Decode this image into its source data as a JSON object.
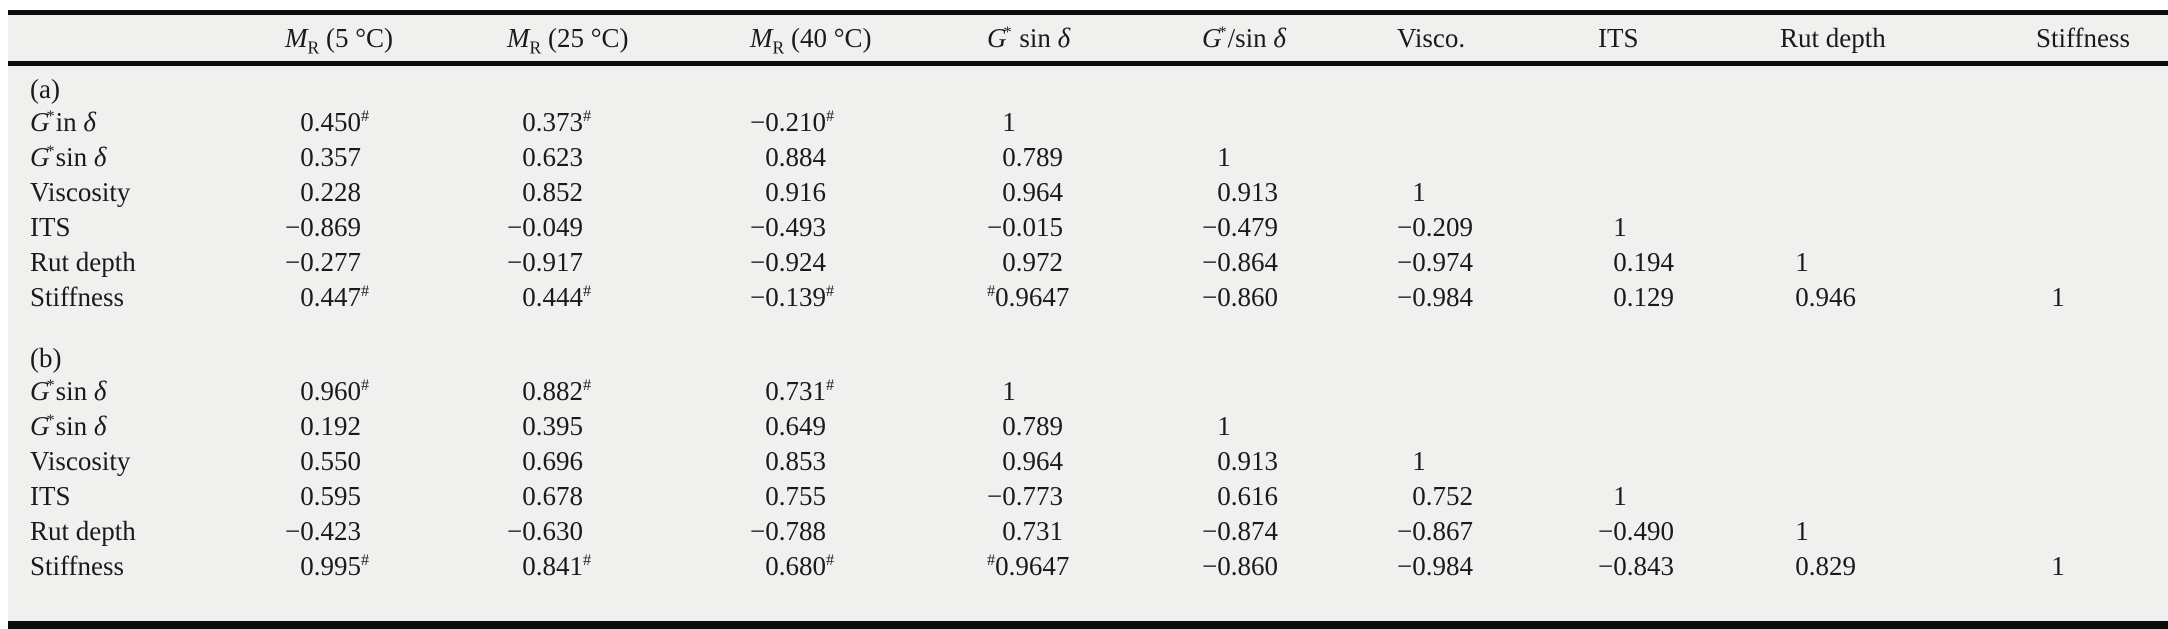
{
  "meta": {
    "background": "#ffffff",
    "table_background": "#f0f0ef",
    "rule_color": "#0d0d0d",
    "text_color": "#1a1a1a"
  },
  "chart_data": {
    "type": "table",
    "title": "",
    "columns": [
      "",
      "MR (5 °C)",
      "MR (25 °C)",
      "MR (40 °C)",
      "G* sin δ",
      "G*/sin δ",
      "Visco.",
      "ITS",
      "Rut depth",
      "Stiffness"
    ],
    "sections": [
      {
        "label": "(a)",
        "rows": [
          [
            "G*in δ",
            "0.450#",
            "0.373#",
            "−0.210#",
            "1",
            "",
            "",
            "",
            "",
            ""
          ],
          [
            "G*sin δ",
            "0.357",
            "0.623",
            "0.884",
            "0.789",
            "1",
            "",
            "",
            "",
            ""
          ],
          [
            "Viscosity",
            "0.228",
            "0.852",
            "0.916",
            "0.964",
            "0.913",
            "1",
            "",
            "",
            ""
          ],
          [
            "ITS",
            "−0.869",
            "−0.049",
            "−0.493",
            "−0.015",
            "−0.479",
            "−0.209",
            "1",
            "",
            ""
          ],
          [
            "Rut depth",
            "−0.277",
            "−0.917",
            "−0.924",
            "0.972",
            "−0.864",
            "−0.974",
            "0.194",
            "1",
            ""
          ],
          [
            "Stiffness",
            "0.447#",
            "0.444#",
            "−0.139#",
            "#0.9647",
            "−0.860",
            "−0.984",
            "0.129",
            "0.946",
            "1"
          ]
        ]
      },
      {
        "label": "(b)",
        "rows": [
          [
            "G*sin δ",
            "0.960#",
            "0.882#",
            "0.731#",
            "1",
            "",
            "",
            "",
            "",
            ""
          ],
          [
            "G*sin δ",
            "0.192",
            "0.395",
            "0.649",
            "0.789",
            "1",
            "",
            "",
            "",
            ""
          ],
          [
            "Viscosity",
            "0.550",
            "0.696",
            "0.853",
            "0.964",
            "0.913",
            "1",
            "",
            "",
            ""
          ],
          [
            "ITS",
            "0.595",
            "0.678",
            "0.755",
            "−0.773",
            "0.616",
            "0.752",
            "1",
            "",
            ""
          ],
          [
            "Rut depth",
            "−0.423",
            "−0.630",
            "−0.788",
            "0.731",
            "−0.874",
            "−0.867",
            "−0.490",
            "1",
            ""
          ],
          [
            "Stiffness",
            "0.995#",
            "0.841#",
            "0.680#",
            "#0.9647",
            "−0.860",
            "−0.984",
            "−0.843",
            "0.829",
            "1"
          ]
        ]
      }
    ]
  },
  "table": {
    "header": {
      "columns": [
        {
          "name": "row-label",
          "parts": []
        },
        {
          "name": "mr-5c",
          "parts": [
            {
              "t": "i",
              "v": "M"
            },
            {
              "t": "sub",
              "v": "R"
            },
            {
              "t": "n",
              "v": " (5 °C)"
            }
          ]
        },
        {
          "name": "mr-25c",
          "parts": [
            {
              "t": "i",
              "v": "M"
            },
            {
              "t": "sub",
              "v": "R"
            },
            {
              "t": "n",
              "v": " (25 °C)"
            }
          ]
        },
        {
          "name": "mr-40c",
          "parts": [
            {
              "t": "i",
              "v": "M"
            },
            {
              "t": "sub",
              "v": "R"
            },
            {
              "t": "n",
              "v": " (40 °C)"
            }
          ]
        },
        {
          "name": "g-star-sin-delta",
          "parts": [
            {
              "t": "i",
              "v": "G"
            },
            {
              "t": "sup",
              "v": "*"
            },
            {
              "t": "n",
              "v": " sin "
            },
            {
              "t": "i",
              "v": "δ"
            }
          ]
        },
        {
          "name": "g-star-over-sin-delta",
          "parts": [
            {
              "t": "i",
              "v": "G"
            },
            {
              "t": "sup",
              "v": "*"
            },
            {
              "t": "n",
              "v": "/sin "
            },
            {
              "t": "i",
              "v": "δ"
            }
          ]
        },
        {
          "name": "visco",
          "parts": [
            {
              "t": "n",
              "v": "Visco."
            }
          ]
        },
        {
          "name": "its",
          "parts": [
            {
              "t": "n",
              "v": "ITS"
            }
          ]
        },
        {
          "name": "rut-depth",
          "parts": [
            {
              "t": "n",
              "v": "Rut depth"
            }
          ]
        },
        {
          "name": "stiffness",
          "parts": [
            {
              "t": "n",
              "v": "Stiffness"
            }
          ]
        }
      ]
    },
    "sections": [
      {
        "label": "(a)",
        "rows": [
          {
            "label_parts": [
              {
                "t": "i",
                "v": "G"
              },
              {
                "t": "sup",
                "v": "*"
              },
              {
                "t": "n",
                "v": "in "
              },
              {
                "t": "i",
                "v": "δ"
              }
            ],
            "values": [
              "0.450#",
              "0.373#",
              "−0.210#",
              "1",
              "",
              "",
              "",
              "",
              ""
            ]
          },
          {
            "label_parts": [
              {
                "t": "i",
                "v": "G"
              },
              {
                "t": "sup",
                "v": "*"
              },
              {
                "t": "n",
                "v": "sin "
              },
              {
                "t": "i",
                "v": "δ"
              }
            ],
            "values": [
              "0.357",
              "0.623",
              "0.884",
              "0.789",
              "1",
              "",
              "",
              "",
              ""
            ]
          },
          {
            "label_parts": [
              {
                "t": "n",
                "v": "Viscosity"
              }
            ],
            "values": [
              "0.228",
              "0.852",
              "0.916",
              "0.964",
              "0.913",
              "1",
              "",
              "",
              ""
            ]
          },
          {
            "label_parts": [
              {
                "t": "n",
                "v": "ITS"
              }
            ],
            "values": [
              "−0.869",
              "−0.049",
              "−0.493",
              "−0.015",
              "−0.479",
              "−0.209",
              "1",
              "",
              ""
            ]
          },
          {
            "label_parts": [
              {
                "t": "n",
                "v": "Rut depth"
              }
            ],
            "values": [
              "−0.277",
              "−0.917",
              "−0.924",
              "0.972",
              "−0.864",
              "−0.974",
              "0.194",
              "1",
              ""
            ]
          },
          {
            "label_parts": [
              {
                "t": "n",
                "v": "Stiffness"
              }
            ],
            "values": [
              "0.447#",
              "0.444#",
              "−0.139#",
              "#0.9647",
              "−0.860",
              "−0.984",
              "0.129",
              "0.946",
              "1"
            ]
          }
        ]
      },
      {
        "label": "(b)",
        "rows": [
          {
            "label_parts": [
              {
                "t": "i",
                "v": "G"
              },
              {
                "t": "sup",
                "v": "*"
              },
              {
                "t": "n",
                "v": "sin "
              },
              {
                "t": "i",
                "v": "δ"
              }
            ],
            "values": [
              "0.960#",
              "0.882#",
              "0.731#",
              "1",
              "",
              "",
              "",
              "",
              ""
            ]
          },
          {
            "label_parts": [
              {
                "t": "i",
                "v": "G"
              },
              {
                "t": "sup",
                "v": "*"
              },
              {
                "t": "n",
                "v": "sin "
              },
              {
                "t": "i",
                "v": "δ"
              }
            ],
            "values": [
              "0.192",
              "0.395",
              "0.649",
              "0.789",
              "1",
              "",
              "",
              "",
              ""
            ]
          },
          {
            "label_parts": [
              {
                "t": "n",
                "v": "Viscosity"
              }
            ],
            "values": [
              "0.550",
              "0.696",
              "0.853",
              "0.964",
              "0.913",
              "1",
              "",
              "",
              ""
            ]
          },
          {
            "label_parts": [
              {
                "t": "n",
                "v": "ITS"
              }
            ],
            "values": [
              "0.595",
              "0.678",
              "0.755",
              "−0.773",
              "0.616",
              "0.752",
              "1",
              "",
              ""
            ]
          },
          {
            "label_parts": [
              {
                "t": "n",
                "v": "Rut depth"
              }
            ],
            "values": [
              "−0.423",
              "−0.630",
              "−0.788",
              "0.731",
              "−0.874",
              "−0.867",
              "−0.490",
              "1",
              ""
            ]
          },
          {
            "label_parts": [
              {
                "t": "n",
                "v": "Stiffness"
              }
            ],
            "values": [
              "0.995#",
              "0.841#",
              "0.680#",
              "#0.9647",
              "−0.860",
              "−0.984",
              "−0.843",
              "0.829",
              "1"
            ]
          }
        ]
      }
    ]
  }
}
